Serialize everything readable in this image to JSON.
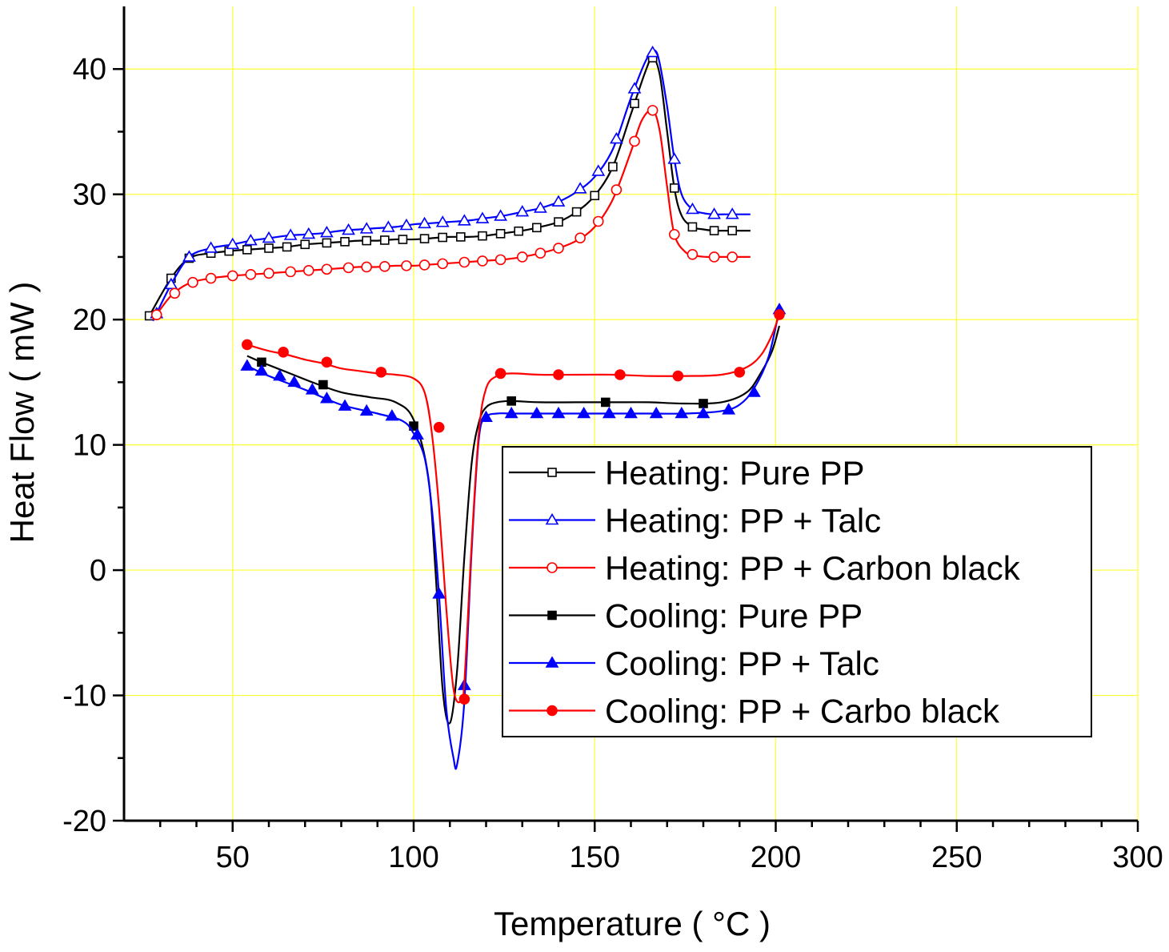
{
  "chart_data": {
    "type": "line",
    "title": "",
    "xlabel": "Temperature ( °C )",
    "ylabel": "Heat Flow ( mW )",
    "xlim": [
      20,
      300
    ],
    "ylim": [
      -20,
      45
    ],
    "xticks": [
      50,
      100,
      150,
      200,
      250,
      300
    ],
    "xtick_labels": [
      "50",
      "100",
      "150",
      "200",
      "250",
      "300"
    ],
    "yticks": [
      -20,
      -10,
      0,
      10,
      20,
      30,
      40
    ],
    "ytick_labels": [
      "-20",
      "-10",
      "0",
      "10",
      "20",
      "30",
      "40"
    ],
    "grid": true,
    "grid_color": "#ffff33",
    "legend_position": "lower-right",
    "series": [
      {
        "name": "Heating: Pure PP",
        "color": "#000000",
        "marker": "square",
        "filled": false,
        "x": [
          27,
          33,
          38,
          44,
          50,
          55,
          60,
          65,
          70,
          75,
          80,
          85,
          90,
          95,
          100,
          105,
          110,
          115,
          120,
          125,
          130,
          135,
          140,
          145,
          150,
          155,
          160,
          164,
          166,
          168,
          170,
          172,
          174,
          177,
          180,
          183,
          186,
          190,
          193
        ],
        "y": [
          20.3,
          23.3,
          24.9,
          25.3,
          25.5,
          25.6,
          25.7,
          25.8,
          26.0,
          26.1,
          26.2,
          26.3,
          26.3,
          26.4,
          26.4,
          26.5,
          26.6,
          26.6,
          26.7,
          26.9,
          27.1,
          27.4,
          27.8,
          28.6,
          29.9,
          32.2,
          36.4,
          39.8,
          40.9,
          39.5,
          35.0,
          30.5,
          28.3,
          27.4,
          27.2,
          27.1,
          27.1,
          27.1,
          27.1
        ],
        "marker_x": [
          27,
          33,
          38,
          44,
          49,
          54,
          60,
          65,
          70,
          76,
          81,
          87,
          92,
          97,
          103,
          108,
          113,
          119,
          124,
          129,
          134,
          140,
          145,
          150,
          155,
          161,
          166,
          172,
          177,
          183,
          188
        ]
      },
      {
        "name": "Heating: PP + Talc",
        "color": "#0000ff",
        "marker": "triangle",
        "filled": false,
        "x": [
          28,
          33,
          38,
          44,
          50,
          55,
          60,
          65,
          70,
          75,
          80,
          85,
          90,
          95,
          100,
          105,
          110,
          115,
          120,
          125,
          130,
          135,
          140,
          145,
          150,
          155,
          160,
          164,
          166.5,
          168,
          170,
          172,
          174,
          177,
          180,
          183,
          186,
          190,
          193
        ],
        "y": [
          19.9,
          22.8,
          25.0,
          25.7,
          26.0,
          26.3,
          26.5,
          26.7,
          26.8,
          26.9,
          27.1,
          27.2,
          27.3,
          27.4,
          27.6,
          27.7,
          27.8,
          27.9,
          28.1,
          28.3,
          28.6,
          28.9,
          29.4,
          30.2,
          31.4,
          33.6,
          37.7,
          40.6,
          41.5,
          40.4,
          37.0,
          32.8,
          30.0,
          28.8,
          28.5,
          28.4,
          28.4,
          28.4,
          28.4
        ],
        "marker_x": [
          29,
          33,
          38,
          44,
          50,
          55,
          60,
          66,
          71,
          76,
          82,
          87,
          93,
          98,
          103,
          108,
          114,
          119,
          124,
          130,
          135,
          140,
          146,
          151,
          156,
          161,
          166,
          172,
          177,
          183,
          188
        ]
      },
      {
        "name": "Heating: PP +  Carbon black",
        "color": "#ff0000",
        "marker": "circle",
        "filled": false,
        "x": [
          28,
          33,
          38,
          44,
          50,
          55,
          60,
          65,
          70,
          75,
          80,
          85,
          90,
          95,
          100,
          105,
          110,
          115,
          120,
          125,
          130,
          135,
          140,
          145,
          150,
          155,
          160,
          163,
          166,
          168,
          170,
          172,
          175,
          178,
          181,
          184,
          188,
          193
        ],
        "y": [
          20.0,
          21.9,
          22.9,
          23.3,
          23.5,
          23.6,
          23.7,
          23.8,
          23.9,
          24.0,
          24.1,
          24.2,
          24.2,
          24.3,
          24.3,
          24.4,
          24.5,
          24.6,
          24.7,
          24.8,
          25.0,
          25.3,
          25.7,
          26.3,
          27.4,
          29.6,
          33.4,
          35.9,
          36.7,
          35.0,
          30.6,
          26.8,
          25.4,
          25.1,
          25.0,
          25.0,
          25.0,
          25.0
        ],
        "marker_x": [
          29,
          34,
          39,
          44,
          50,
          55,
          60,
          66,
          71,
          76,
          82,
          87,
          92,
          98,
          103,
          108,
          114,
          119,
          124,
          130,
          135,
          140,
          146,
          151,
          156,
          161,
          166,
          172,
          177,
          183,
          188
        ]
      },
      {
        "name": "Cooling: Pure PP",
        "color": "#000000",
        "marker": "square",
        "filled": true,
        "x": [
          54,
          58,
          65,
          72,
          80,
          88,
          95,
          100,
          104,
          106,
          108,
          110,
          112,
          114,
          116,
          118,
          120,
          123,
          127,
          135,
          145,
          155,
          165,
          175,
          185,
          192,
          196,
          199,
          201
        ],
        "y": [
          17.1,
          16.6,
          15.8,
          15.0,
          14.2,
          13.8,
          13.4,
          12.0,
          7.5,
          0.0,
          -9.5,
          -12.2,
          -8.0,
          1.0,
          8.5,
          11.8,
          13.0,
          13.4,
          13.5,
          13.4,
          13.4,
          13.4,
          13.4,
          13.3,
          13.4,
          14.2,
          15.8,
          17.5,
          19.5
        ],
        "marker_points": [
          [
            58,
            16.6
          ],
          [
            75,
            14.8
          ],
          [
            100,
            11.5
          ],
          [
            127,
            13.5
          ],
          [
            153,
            13.4
          ],
          [
            180,
            13.3
          ]
        ]
      },
      {
        "name": "Cooling: PP + Talc",
        "color": "#0000ff",
        "marker": "triangle",
        "filled": true,
        "x": [
          54,
          60,
          70,
          80,
          90,
          97,
          100,
          103,
          105,
          107,
          109,
          111,
          112,
          114,
          116,
          118,
          120,
          123,
          127,
          135,
          145,
          155,
          165,
          175,
          185,
          190,
          194,
          198,
          201
        ],
        "y": [
          16.3,
          15.5,
          14.4,
          13.2,
          12.5,
          11.9,
          10.9,
          9.0,
          5.0,
          -2.0,
          -11.0,
          -15.0,
          -15.5,
          -10.5,
          1.5,
          10.5,
          12.2,
          12.5,
          12.5,
          12.5,
          12.5,
          12.5,
          12.5,
          12.5,
          12.7,
          13.2,
          14.5,
          17.0,
          20.8
        ],
        "marker_points": [
          [
            54,
            16.3
          ],
          [
            58,
            15.9
          ],
          [
            63,
            15.5
          ],
          [
            67,
            15.0
          ],
          [
            72,
            14.4
          ],
          [
            76,
            13.7
          ],
          [
            81,
            13.1
          ],
          [
            87,
            12.7
          ],
          [
            94,
            12.3
          ],
          [
            101,
            10.8
          ],
          [
            107,
            -1.9
          ],
          [
            114,
            -9.2
          ],
          [
            120,
            12.2
          ],
          [
            127,
            12.5
          ],
          [
            134,
            12.5
          ],
          [
            140,
            12.5
          ],
          [
            147,
            12.5
          ],
          [
            154,
            12.5
          ],
          [
            160,
            12.5
          ],
          [
            167,
            12.5
          ],
          [
            174,
            12.5
          ],
          [
            180,
            12.5
          ],
          [
            187,
            12.8
          ],
          [
            194,
            14.2
          ],
          [
            201,
            20.8
          ]
        ]
      },
      {
        "name": "Cooling: PP + Carbo black",
        "color": "#ff0000",
        "marker": "circle",
        "filled": true,
        "x": [
          54,
          60,
          65,
          70,
          75,
          80,
          85,
          90,
          95,
          100,
          103,
          105,
          107,
          109,
          111,
          113,
          114,
          116,
          118,
          120,
          123,
          127,
          135,
          145,
          155,
          165,
          175,
          185,
          192,
          196,
          199,
          201
        ],
        "y": [
          18.0,
          17.5,
          17.2,
          16.8,
          16.5,
          16.1,
          15.9,
          15.7,
          15.6,
          15.3,
          14.2,
          11.0,
          5.0,
          -3.0,
          -9.5,
          -10.5,
          -9.0,
          2.0,
          11.0,
          14.5,
          15.5,
          15.7,
          15.6,
          15.6,
          15.6,
          15.5,
          15.5,
          15.6,
          16.2,
          17.2,
          18.8,
          20.4
        ],
        "marker_points": [
          [
            54,
            18.0
          ],
          [
            64,
            17.4
          ],
          [
            76,
            16.6
          ],
          [
            91,
            15.8
          ],
          [
            107,
            11.4
          ],
          [
            114,
            -10.3
          ],
          [
            124,
            15.7
          ],
          [
            140,
            15.6
          ],
          [
            157,
            15.6
          ],
          [
            173,
            15.5
          ],
          [
            190,
            15.8
          ],
          [
            201,
            20.4
          ]
        ]
      }
    ]
  }
}
